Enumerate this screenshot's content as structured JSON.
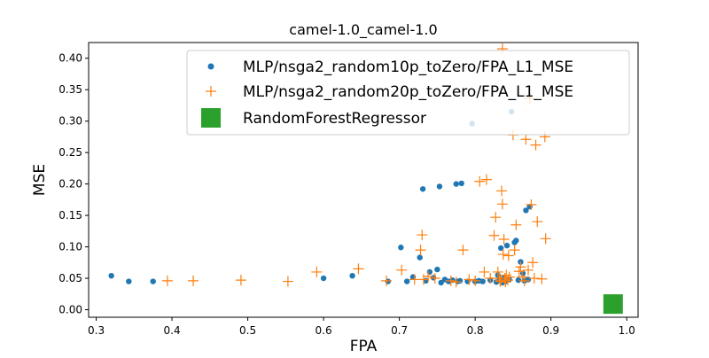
{
  "chart_data": {
    "type": "scatter",
    "title": "camel-1.0_camel-1.0",
    "xlabel": "FPA",
    "ylabel": "MSE",
    "xlim": [
      0.29,
      1.015
    ],
    "ylim": [
      -0.012,
      0.425
    ],
    "xticks": [
      0.3,
      0.4,
      0.5,
      0.6,
      0.7,
      0.8,
      0.9,
      1.0
    ],
    "xtick_labels": [
      "0.3",
      "0.4",
      "0.5",
      "0.6",
      "0.7",
      "0.8",
      "0.9",
      "1.0"
    ],
    "yticks": [
      0.0,
      0.05,
      0.1,
      0.15,
      0.2,
      0.25,
      0.3,
      0.35,
      0.4
    ],
    "ytick_labels": [
      "0.00",
      "0.05",
      "0.10",
      "0.15",
      "0.20",
      "0.25",
      "0.30",
      "0.35",
      "0.40"
    ],
    "grid": false,
    "legend_position": "top-right",
    "series": [
      {
        "name": "MLP/nsga2_random10p_toZero/FPA_L1_MSE",
        "marker": "dot",
        "color": "#1f77b4",
        "points": [
          [
            0.32,
            0.054
          ],
          [
            0.343,
            0.045
          ],
          [
            0.375,
            0.045
          ],
          [
            0.6,
            0.05
          ],
          [
            0.638,
            0.054
          ],
          [
            0.685,
            0.045
          ],
          [
            0.702,
            0.099
          ],
          [
            0.71,
            0.045
          ],
          [
            0.718,
            0.052
          ],
          [
            0.727,
            0.083
          ],
          [
            0.731,
            0.192
          ],
          [
            0.735,
            0.046
          ],
          [
            0.74,
            0.06
          ],
          [
            0.745,
            0.051
          ],
          [
            0.75,
            0.064
          ],
          [
            0.753,
            0.196
          ],
          [
            0.755,
            0.043
          ],
          [
            0.76,
            0.048
          ],
          [
            0.765,
            0.045
          ],
          [
            0.77,
            0.047
          ],
          [
            0.775,
            0.2
          ],
          [
            0.777,
            0.045
          ],
          [
            0.78,
            0.046
          ],
          [
            0.782,
            0.201
          ],
          [
            0.79,
            0.045
          ],
          [
            0.796,
            0.296
          ],
          [
            0.8,
            0.045
          ],
          [
            0.805,
            0.046
          ],
          [
            0.81,
            0.045
          ],
          [
            0.82,
            0.047
          ],
          [
            0.828,
            0.044
          ],
          [
            0.83,
            0.055
          ],
          [
            0.832,
            0.047
          ],
          [
            0.834,
            0.098
          ],
          [
            0.836,
            0.043
          ],
          [
            0.838,
            0.05
          ],
          [
            0.84,
            0.045
          ],
          [
            0.842,
            0.102
          ],
          [
            0.845,
            0.048
          ],
          [
            0.848,
            0.315
          ],
          [
            0.852,
            0.107
          ],
          [
            0.854,
            0.11
          ],
          [
            0.857,
            0.047
          ],
          [
            0.86,
            0.076
          ],
          [
            0.863,
            0.058
          ],
          [
            0.865,
            0.046
          ],
          [
            0.867,
            0.158
          ],
          [
            0.87,
            0.048
          ],
          [
            0.872,
            0.164
          ]
        ]
      },
      {
        "name": "MLP/nsga2_random20p_toZero/FPA_L1_MSE",
        "marker": "plus",
        "color": "#ff7f0e",
        "points": [
          [
            0.394,
            0.046
          ],
          [
            0.428,
            0.046
          ],
          [
            0.491,
            0.047
          ],
          [
            0.553,
            0.045
          ],
          [
            0.591,
            0.06
          ],
          [
            0.646,
            0.065
          ],
          [
            0.683,
            0.046
          ],
          [
            0.703,
            0.063
          ],
          [
            0.72,
            0.048
          ],
          [
            0.728,
            0.095
          ],
          [
            0.73,
            0.119
          ],
          [
            0.732,
            0.048
          ],
          [
            0.738,
            0.053
          ],
          [
            0.747,
            0.05
          ],
          [
            0.768,
            0.046
          ],
          [
            0.775,
            0.044
          ],
          [
            0.784,
            0.095
          ],
          [
            0.792,
            0.048
          ],
          [
            0.8,
            0.046
          ],
          [
            0.806,
            0.204
          ],
          [
            0.812,
            0.06
          ],
          [
            0.815,
            0.207
          ],
          [
            0.82,
            0.05
          ],
          [
            0.825,
            0.118
          ],
          [
            0.827,
            0.147
          ],
          [
            0.83,
            0.06
          ],
          [
            0.832,
            0.05
          ],
          [
            0.833,
            0.045
          ],
          [
            0.834,
            0.047
          ],
          [
            0.835,
            0.189
          ],
          [
            0.836,
            0.168
          ],
          [
            0.837,
            0.088
          ],
          [
            0.838,
            0.112
          ],
          [
            0.839,
            0.05
          ],
          [
            0.84,
            0.044
          ],
          [
            0.841,
            0.055
          ],
          [
            0.843,
            0.047
          ],
          [
            0.844,
            0.086
          ],
          [
            0.845,
            0.052
          ],
          [
            0.85,
            0.278
          ],
          [
            0.852,
            0.095
          ],
          [
            0.854,
            0.135
          ],
          [
            0.858,
            0.061
          ],
          [
            0.86,
            0.068
          ],
          [
            0.862,
            0.052
          ],
          [
            0.865,
            0.046
          ],
          [
            0.867,
            0.271
          ],
          [
            0.87,
            0.063
          ],
          [
            0.872,
            0.336
          ],
          [
            0.874,
            0.167
          ],
          [
            0.876,
            0.075
          ],
          [
            0.878,
            0.05
          ],
          [
            0.88,
            0.262
          ],
          [
            0.882,
            0.14
          ],
          [
            0.888,
            0.049
          ],
          [
            0.892,
            0.275
          ],
          [
            0.893,
            0.113
          ],
          [
            0.836,
            0.415
          ]
        ]
      },
      {
        "name": "RandomForestRegressor",
        "marker": "square",
        "color": "#2ca02c",
        "points": [
          [
            0.982,
            0.009
          ]
        ]
      }
    ]
  }
}
